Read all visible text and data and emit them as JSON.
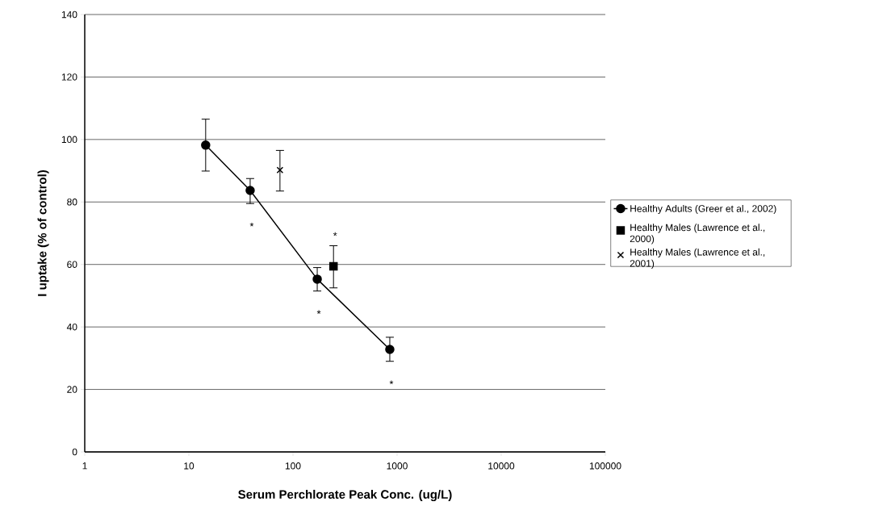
{
  "chart_data": {
    "type": "line",
    "xlabel": "Serum Perchlorate Peak Conc. (ug/L)",
    "ylabel": "I uptake (% of control)",
    "log": "x",
    "xlim": [
      1,
      100000
    ],
    "xticks": [
      1,
      10,
      100,
      1000,
      10000,
      100000
    ],
    "ylim": [
      0,
      140
    ],
    "yticks": [
      0,
      20,
      40,
      60,
      80,
      100,
      120,
      140
    ],
    "grid": "y",
    "legend": "right",
    "series": [
      {
        "name": "Healthy Adults (Greer et al., 2002)",
        "marker": "circle",
        "color": "#000000",
        "x": [
          14.5,
          38.8,
          171,
          851
        ],
        "values": [
          98.2,
          83.7,
          55.3,
          32.8
        ],
        "errors": [
          [
            89.9,
            106.5
          ],
          [
            79.5,
            87.5
          ],
          [
            51.5,
            59
          ],
          [
            29,
            36.7
          ]
        ],
        "value_labels": [
          null,
          "*",
          "*",
          "*"
        ]
      },
      {
        "name": "Healthy Males (Lawrence et al., 2000)",
        "type": "scatter",
        "marker": "square",
        "color": "#000000",
        "x": [
          245
        ],
        "values": [
          59.4
        ],
        "errors": [
          [
            52.5,
            66
          ]
        ],
        "value_labels": [
          "*"
        ]
      },
      {
        "name": "Healthy Males (Lawrence et al., 2001)",
        "type": "scatter",
        "marker": "cross",
        "color": "#000000",
        "x": [
          75
        ],
        "values": [
          90.2
        ],
        "errors": [
          [
            83.5,
            96.5
          ]
        ]
      }
    ]
  }
}
